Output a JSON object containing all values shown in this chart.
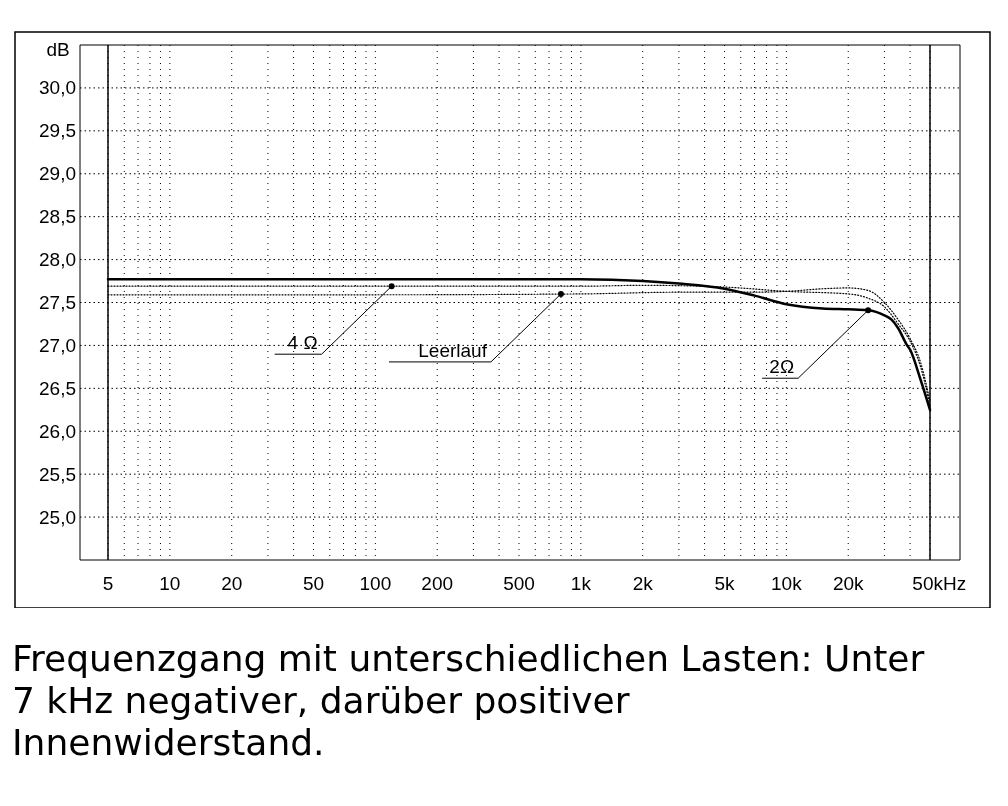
{
  "chart_data": {
    "type": "line",
    "ylabel": "dB",
    "log": "x",
    "grid": true,
    "xlim": [
      5,
      50000
    ],
    "ylim": [
      24.5,
      30.5
    ],
    "xticks": [
      5,
      {
        "value": 6,
        "label": null
      },
      {
        "value": 7,
        "label": null
      },
      {
        "value": 8,
        "label": null
      },
      {
        "value": 9,
        "label": null
      },
      10,
      20,
      {
        "value": 30,
        "label": null
      },
      {
        "value": 40,
        "label": null
      },
      50,
      {
        "value": 60,
        "label": null
      },
      {
        "value": 70,
        "label": null
      },
      {
        "value": 80,
        "label": null
      },
      {
        "value": 90,
        "label": null
      },
      100,
      200,
      {
        "value": 300,
        "label": null
      },
      {
        "value": 400,
        "label": null
      },
      500,
      {
        "value": 600,
        "label": null
      },
      {
        "value": 700,
        "label": null
      },
      {
        "value": 800,
        "label": null
      },
      {
        "value": 900,
        "label": null
      },
      {
        "value": 1000,
        "label": "1k"
      },
      {
        "value": 2000,
        "label": "2k"
      },
      {
        "value": 3000,
        "label": null
      },
      {
        "value": 4000,
        "label": null
      },
      {
        "value": 5000,
        "label": "5k"
      },
      {
        "value": 6000,
        "label": null
      },
      {
        "value": 7000,
        "label": null
      },
      {
        "value": 8000,
        "label": null
      },
      {
        "value": 9000,
        "label": null
      },
      {
        "value": 10000,
        "label": "10k"
      },
      {
        "value": 20000,
        "label": "20k"
      },
      {
        "value": 30000,
        "label": null
      },
      {
        "value": 40000,
        "label": null
      },
      {
        "value": 50000,
        "label": "50k"
      }
    ],
    "xlabel": "Hz",
    "yticks": [
      {
        "value": 25,
        "label": "25,0"
      },
      {
        "value": 25.5,
        "label": "25,5"
      },
      {
        "value": 26,
        "label": "26,0"
      },
      {
        "value": 26.5,
        "label": "26,5"
      },
      {
        "value": 27,
        "label": "27,0"
      },
      {
        "value": 27.5,
        "label": "27,5"
      },
      {
        "value": 28,
        "label": "28,0"
      },
      {
        "value": 28.5,
        "label": "28,5"
      },
      {
        "value": 29,
        "label": "29,0"
      },
      {
        "value": 29.5,
        "label": "29,5"
      },
      {
        "value": 30,
        "label": "30,0"
      }
    ],
    "series": [
      {
        "color": "#000000",
        "line_style": "solid",
        "x": [
          5,
          100,
          1000,
          2000,
          3000,
          5000,
          7000,
          10000,
          15000,
          20000,
          25000,
          30000,
          32500,
          35000,
          38500,
          40000,
          45000,
          50000
        ],
        "values": [
          27.77,
          27.77,
          27.77,
          27.75,
          27.72,
          27.66,
          27.58,
          27.48,
          27.43,
          27.42,
          27.41,
          27.35,
          27.3,
          27.2,
          27.01,
          26.95,
          26.6,
          26.25
        ]
      },
      {
        "color": "#000000",
        "line_style": "dotted",
        "x": [
          5,
          100,
          1000,
          2000,
          5000,
          10000,
          20000,
          25000,
          30000,
          35000,
          40000,
          45000,
          50000
        ],
        "values": [
          27.69,
          27.69,
          27.69,
          27.7,
          27.68,
          27.63,
          27.6,
          27.55,
          27.45,
          27.25,
          27.05,
          26.75,
          26.3
        ]
      },
      {
        "color": "#000000",
        "line_style": "dotted",
        "x": [
          5,
          100,
          1000,
          3000,
          7000,
          10000,
          15000,
          20000,
          25000,
          30000,
          35000,
          40000,
          45000,
          50000
        ],
        "values": [
          27.59,
          27.59,
          27.6,
          27.62,
          27.62,
          27.63,
          27.66,
          27.67,
          27.64,
          27.5,
          27.3,
          27.08,
          26.8,
          26.35
        ]
      }
    ],
    "annotations": [
      {
        "text": "4 Ω",
        "x": 120,
        "y": 27.69
      },
      {
        "text": "Leerlauf",
        "x": 800,
        "y": 27.6
      },
      {
        "text": "2Ω",
        "x": 25000,
        "y": 27.41
      },
      "Frequenzgang mit unterschiedlichen Lasten: Unter 7 kHz negativer, darüber positiver Innenwiderstand."
    ]
  }
}
